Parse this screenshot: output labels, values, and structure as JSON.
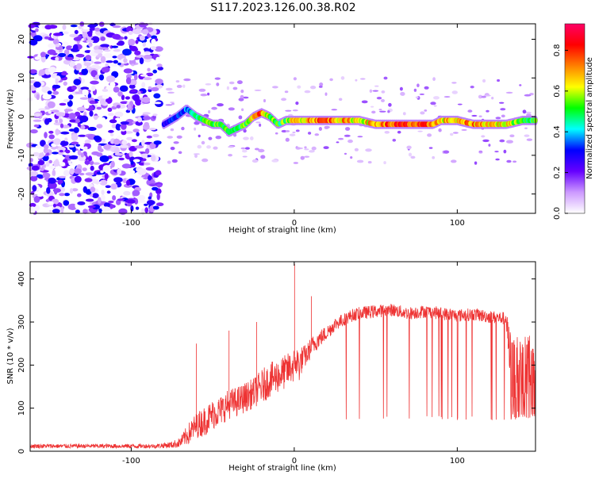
{
  "title": "S117.2023.126.00.38.R02",
  "chart_data": [
    {
      "type": "heatmap",
      "xlabel": "Height of straight line (km)",
      "ylabel": "Frequency (Hz)",
      "xlim": [
        -162,
        148
      ],
      "ylim": [
        -25,
        24
      ],
      "x_ticks": [
        -100,
        0,
        100
      ],
      "y_ticks": [
        -20,
        -10,
        0,
        10,
        20
      ],
      "grid": false,
      "colorbar": {
        "label": "Normalized spectral amplitude",
        "range": [
          0.0,
          0.93
        ],
        "ticks": [
          "0.0",
          "0.2",
          "0.4",
          "0.6",
          "0.8"
        ],
        "colors": [
          "#ffffff",
          "#cc99ff",
          "#6600ff",
          "#0000ff",
          "#00ffff",
          "#00ff00",
          "#ffff00",
          "#ff8000",
          "#ff0000",
          "#ff0066"
        ]
      },
      "noise_region_x": [
        -162,
        -82
      ],
      "signal_ridge": {
        "x": [
          -80,
          -72,
          -66,
          -60,
          -55,
          -50,
          -45,
          -40,
          -35,
          -30,
          -25,
          -20,
          -15,
          -10,
          -5,
          0,
          10,
          20,
          30,
          40,
          50,
          60,
          70,
          80,
          85,
          90,
          95,
          100,
          110,
          120,
          130,
          140,
          148
        ],
        "frequency_hz": [
          -2,
          0,
          2,
          0,
          -1,
          -2,
          -2,
          -4,
          -3,
          -2,
          0,
          1,
          0,
          -2,
          -1,
          -1,
          -1,
          -1,
          -1,
          -1,
          -2,
          -2,
          -2,
          -2,
          -2,
          -1,
          -1,
          -1,
          -2,
          -2,
          -2,
          -1,
          -1
        ],
        "amplitude": [
          0.3,
          0.35,
          0.4,
          0.5,
          0.55,
          0.6,
          0.55,
          0.6,
          0.55,
          0.6,
          0.7,
          0.85,
          0.6,
          0.55,
          0.6,
          0.7,
          0.8,
          0.85,
          0.75,
          0.7,
          0.75,
          0.85,
          0.85,
          0.8,
          0.85,
          0.7,
          0.75,
          0.7,
          0.8,
          0.75,
          0.7,
          0.6,
          0.55
        ]
      }
    },
    {
      "type": "line",
      "xlabel": "Height of straight line (km)",
      "ylabel": "SNR (10 * v/v)",
      "xlim": [
        -162,
        148
      ],
      "ylim": [
        0,
        440
      ],
      "x_ticks": [
        -100,
        0,
        100
      ],
      "y_ticks": [
        0,
        100,
        200,
        300,
        400
      ],
      "grid": false,
      "series": [
        {
          "color": "#ee3333",
          "x": [
            -162,
            -140,
            -120,
            -100,
            -85,
            -75,
            -70,
            -65,
            -60,
            -55,
            -50,
            -45,
            -40,
            -35,
            -30,
            -25,
            -20,
            -15,
            -10,
            -5,
            0,
            1,
            3,
            5,
            8,
            10,
            15,
            20,
            25,
            30,
            35,
            40,
            50,
            60,
            70,
            80,
            90,
            100,
            110,
            120,
            130,
            133,
            140,
            148
          ],
          "baseline": [
            12,
            12,
            12,
            12,
            12,
            15,
            20,
            40,
            60,
            70,
            85,
            95,
            110,
            115,
            125,
            135,
            150,
            165,
            175,
            185,
            200,
            210,
            200,
            215,
            225,
            240,
            260,
            275,
            295,
            305,
            315,
            320,
            325,
            328,
            320,
            325,
            320,
            315,
            318,
            312,
            308,
            180,
            180,
            180
          ],
          "noise": [
            5,
            5,
            5,
            5,
            5,
            8,
            12,
            25,
            30,
            35,
            35,
            35,
            35,
            35,
            35,
            35,
            40,
            40,
            40,
            40,
            40,
            40,
            40,
            30,
            25,
            25,
            20,
            18,
            16,
            15,
            15,
            15,
            15,
            15,
            15,
            15,
            15,
            15,
            15,
            15,
            15,
            100,
            100,
            100
          ],
          "spikes": [
            {
              "x": 0.2,
              "y": 435
            },
            {
              "x": 10.5,
              "y": 360
            },
            {
              "x": -23,
              "y": 300
            },
            {
              "x": -40,
              "y": 280
            },
            {
              "x": -60,
              "y": 250
            }
          ],
          "dropouts_floor": 72,
          "dropouts_x_range": [
            30,
            133
          ]
        }
      ]
    }
  ]
}
